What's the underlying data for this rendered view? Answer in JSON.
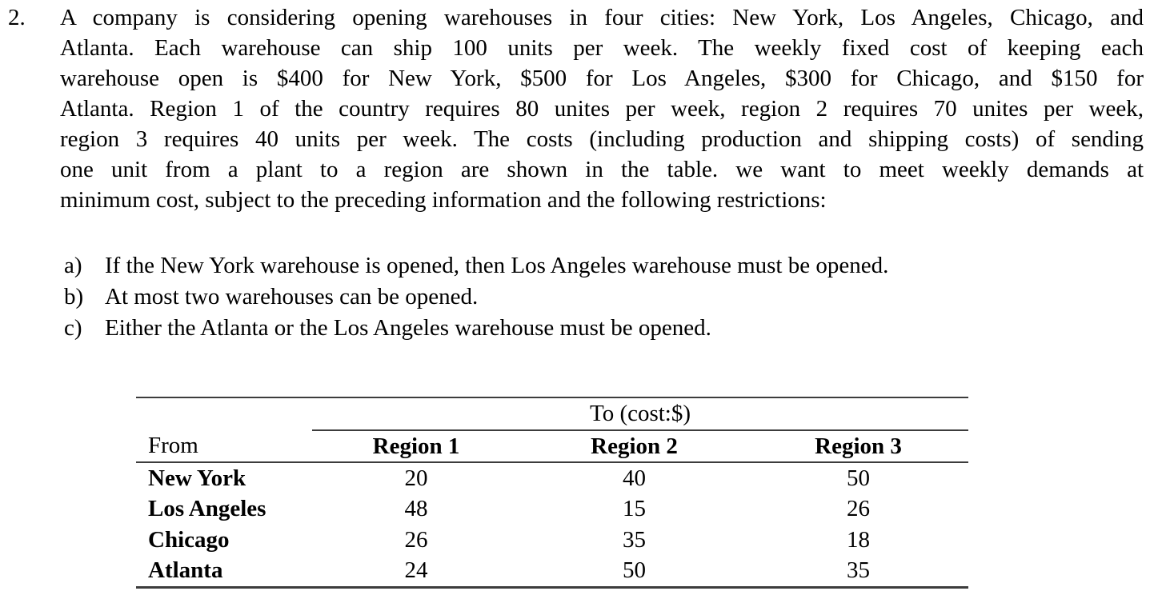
{
  "colors": {
    "background": "#ffffff",
    "ink": "#000000",
    "table_rule": "#3c3c3c"
  },
  "problem": {
    "number": "2.",
    "paragraph_lines": [
      "A company is considering opening warehouses in four cities: New York, Los Angeles, Chicago, and",
      "Atlanta. Each warehouse can ship 100 units per week. The weekly fixed cost of keeping each",
      "warehouse open is $400 for New York, $500 for Los Angeles, $300 for Chicago, and $150 for",
      "Atlanta. Region 1 of the country requires 80 unites per week, region 2 requires 70 unites per week,",
      "region 3 requires 40 units per week. The costs (including production and shipping costs) of sending",
      "one unit from a plant to a region are shown in the table. we want to meet weekly demands at",
      "minimum cost, subject to the preceding information and the following restrictions:"
    ],
    "restrictions": [
      {
        "marker": "a)",
        "text": "If the New York warehouse is opened, then Los Angeles warehouse must be opened."
      },
      {
        "marker": "b)",
        "text": "At most two warehouses can be opened."
      },
      {
        "marker": "c)",
        "text": "Either the Atlanta or the Los Angeles warehouse must be opened."
      }
    ]
  },
  "cost_table": {
    "span_header": "To (cost:$)",
    "row_header_label": "From",
    "column_headers": [
      "Region 1",
      "Region 2",
      "Region 3"
    ],
    "rows": [
      {
        "from": "New York",
        "costs": [
          "20",
          "40",
          "50"
        ]
      },
      {
        "from": "Los Angeles",
        "costs": [
          "48",
          "15",
          "26"
        ]
      },
      {
        "from": "Chicago",
        "costs": [
          "26",
          "35",
          "18"
        ]
      },
      {
        "from": "Atlanta",
        "costs": [
          "24",
          "50",
          "35"
        ]
      }
    ]
  }
}
